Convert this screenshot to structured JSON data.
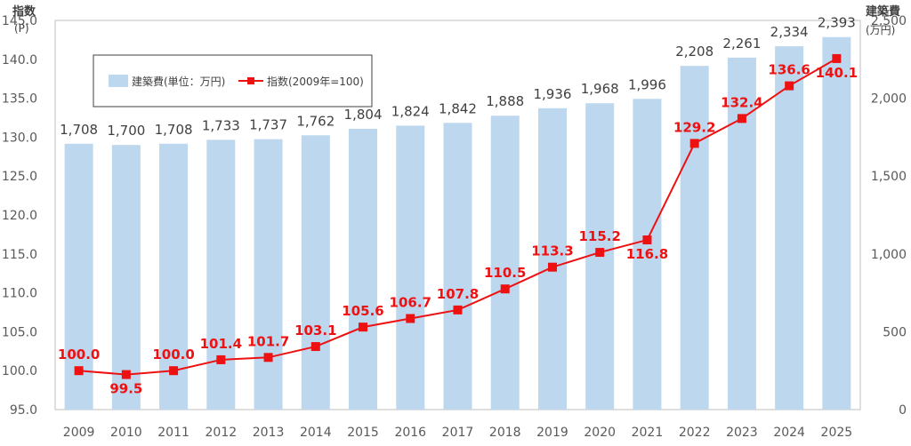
{
  "chart_data": {
    "type": "bar",
    "categories": [
      "2009",
      "2010",
      "2011",
      "2012",
      "2013",
      "2014",
      "2015",
      "2016",
      "2017",
      "2018",
      "2019",
      "2020",
      "2021",
      "2022",
      "2023",
      "2024",
      "2025"
    ],
    "series": [
      {
        "name": "建築費(単位：万円)",
        "kind": "bar",
        "axis": "right",
        "color": "#bdd7ee",
        "values": [
          1708,
          1700,
          1708,
          1733,
          1737,
          1762,
          1804,
          1824,
          1842,
          1888,
          1936,
          1968,
          1996,
          2208,
          2261,
          2334,
          2393
        ],
        "labels": [
          "1,708",
          "1,700",
          "1,708",
          "1,733",
          "1,737",
          "1,762",
          "1,804",
          "1,824",
          "1,842",
          "1,888",
          "1,936",
          "1,968",
          "1,996",
          "2,208",
          "2,261",
          "2,334",
          "2,393"
        ]
      },
      {
        "name": "指数(2009年=100)",
        "kind": "line",
        "axis": "left",
        "color": "#ee1111",
        "values": [
          100.0,
          99.5,
          100.0,
          101.4,
          101.7,
          103.1,
          105.6,
          106.7,
          107.8,
          110.5,
          113.3,
          115.2,
          116.8,
          129.2,
          132.4,
          136.6,
          140.1
        ],
        "labels": [
          "100.0",
          "99.5",
          "100.0",
          "101.4",
          "101.7",
          "103.1",
          "105.6",
          "106.7",
          "107.8",
          "110.5",
          "113.3",
          "115.2",
          "116.8",
          "129.2",
          "132.4",
          "136.6",
          "140.1"
        ]
      }
    ],
    "left_axis": {
      "title": "指数",
      "unit": "(P)",
      "ylim": [
        95,
        145
      ],
      "ticks": [
        "95.0",
        "100.0",
        "105.0",
        "110.0",
        "115.0",
        "120.0",
        "125.0",
        "130.0",
        "135.0",
        "140.0",
        "145.0"
      ]
    },
    "right_axis": {
      "title": "建築費",
      "unit": "(万円)",
      "ylim": [
        0,
        2500
      ],
      "ticks": [
        "0",
        "500",
        "1,000",
        "1,500",
        "2,000",
        "2,500"
      ]
    },
    "grid": false,
    "legend": "top-left"
  }
}
